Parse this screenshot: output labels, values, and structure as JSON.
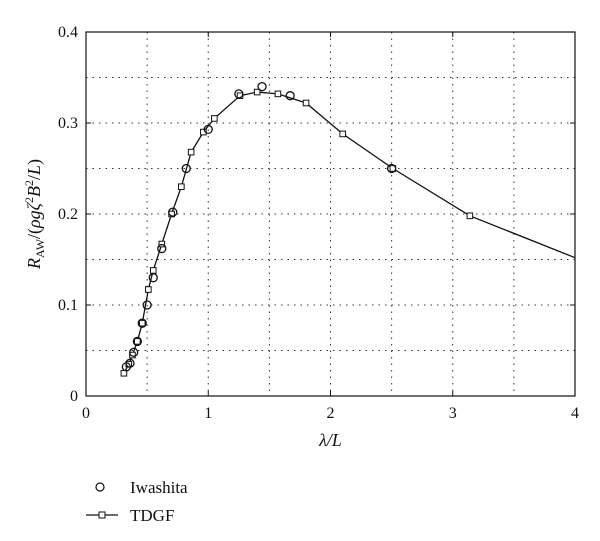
{
  "chart_data": {
    "type": "line",
    "xlabel": "λ/L",
    "ylabel": "R_AW/(ρgζ²B²/L)",
    "xlim": [
      0,
      4
    ],
    "ylim": [
      0,
      0.4
    ],
    "xticks": [
      "0",
      "1",
      "2",
      "3",
      "4"
    ],
    "yticks": [
      "0",
      "0.1",
      "0.2",
      "0.3",
      "0.4"
    ],
    "grid": true,
    "legend_position": "below-left",
    "series": [
      {
        "name": "Iwashita",
        "marker": "circle",
        "line": false,
        "x": [
          0.33,
          0.36,
          0.39,
          0.42,
          0.46,
          0.5,
          0.55,
          0.62,
          0.71,
          0.82,
          1.0,
          1.25,
          1.44,
          1.67,
          2.5
        ],
        "y": [
          0.032,
          0.036,
          0.048,
          0.06,
          0.08,
          0.1,
          0.13,
          0.162,
          0.202,
          0.25,
          0.293,
          0.332,
          0.34,
          0.33,
          0.25
        ]
      },
      {
        "name": "TDGF",
        "marker": "square",
        "line": true,
        "x": [
          0.31,
          0.35,
          0.38,
          0.42,
          0.46,
          0.51,
          0.55,
          0.62,
          0.7,
          0.78,
          0.86,
          0.96,
          1.05,
          1.26,
          1.4,
          1.57,
          1.8,
          2.1,
          2.51,
          3.14,
          4.0
        ],
        "y": [
          0.025,
          0.035,
          0.045,
          0.06,
          0.08,
          0.117,
          0.138,
          0.167,
          0.2,
          0.23,
          0.268,
          0.29,
          0.305,
          0.33,
          0.334,
          0.332,
          0.322,
          0.288,
          0.25,
          0.198,
          0.152
        ]
      }
    ]
  }
}
